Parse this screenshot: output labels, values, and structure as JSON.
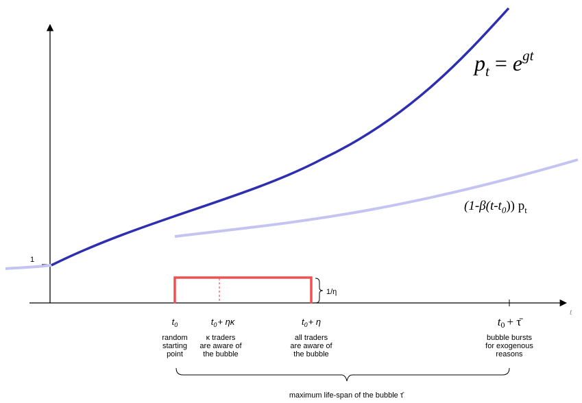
{
  "axes": {
    "x_label": "t",
    "y_tick": "1",
    "x_tick": "t0 + τ̄"
  },
  "curves": {
    "price": {
      "label_p": "p",
      "label_sub": "t",
      "label_eq": "=",
      "label_e": "e",
      "label_exp": "gt",
      "color": "#2e2eb0"
    },
    "bubble": {
      "part1": "(1-β(t-t",
      "part1_sub": "0",
      "part2": ")) p",
      "part2_sub": "t",
      "color": "#c4c4f2"
    }
  },
  "window": {
    "height_label": "1/η",
    "color": "#f05050"
  },
  "points": [
    {
      "t_main": "t",
      "t_sub": "0",
      "t_rest": "",
      "desc": [
        "random",
        "starting",
        "point"
      ]
    },
    {
      "t_main": "t",
      "t_sub": "0",
      "t_rest": "+ ηκ",
      "desc": [
        "κ  traders",
        "are aware of",
        "the bubble"
      ]
    },
    {
      "t_main": "t",
      "t_sub": "0",
      "t_rest": "+ η",
      "desc": [
        "all traders",
        "are aware of",
        "the bubble"
      ]
    },
    {
      "t_main": "t",
      "t_sub": "0",
      "t_rest": "+ τ̄",
      "desc": [
        "bubble bursts",
        "for exogenous",
        "reasons"
      ]
    }
  ],
  "brace_label": "maximum life-span of the bubble τ̄"
}
